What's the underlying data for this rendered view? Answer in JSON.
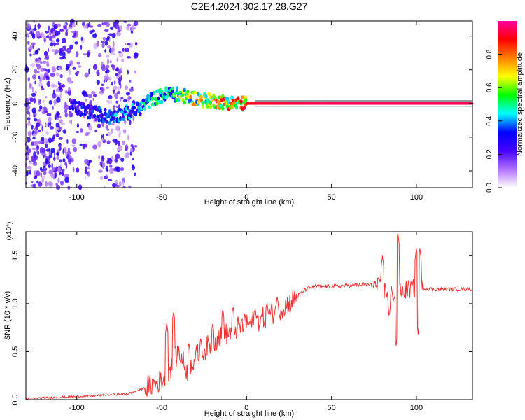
{
  "figure": {
    "title": "C2E4.2024.302.17.28.G27"
  },
  "chart_data": [
    {
      "type": "heatmap",
      "title": "C2E4.2024.302.17.28.G27",
      "xlabel": "Height of straight line (km)",
      "ylabel": "Frequency (Hz)",
      "xlim": [
        -130,
        133
      ],
      "ylim": [
        -50,
        49
      ],
      "xticks": [
        "-100",
        "-50",
        "0",
        "50",
        "100"
      ],
      "yticks": [
        "-40",
        "-20",
        "0",
        "20",
        "40"
      ],
      "colorbar": {
        "label": "Normalized spectral amplitude",
        "range": [
          0,
          1
        ],
        "ticks": [
          "0.0",
          "0.2",
          "0.4",
          "0.6",
          "0.8"
        ],
        "colors": [
          "#ffffff",
          "#b070ff",
          "#4400ff",
          "#0000ff",
          "#00ffff",
          "#00ff00",
          "#ffff00",
          "#ff7f00",
          "#ff0000",
          "#ff00a0"
        ]
      },
      "ridge": {
        "x": [
          -102,
          -95,
          -88,
          -80,
          -72,
          -65,
          -55,
          -45,
          -35,
          -25,
          -15,
          -5,
          0,
          10,
          50,
          100,
          133
        ],
        "frequency": [
          -2,
          -4,
          -6,
          -8,
          -6,
          -4,
          3,
          6,
          4,
          2,
          1,
          0,
          0,
          0,
          0,
          0,
          0
        ],
        "amplitude": [
          0.3,
          0.35,
          0.35,
          0.4,
          0.4,
          0.45,
          0.5,
          0.55,
          0.7,
          0.75,
          0.8,
          0.85,
          0.9,
          0.92,
          0.95,
          0.95,
          0.95
        ]
      }
    },
    {
      "type": "line",
      "xlabel": "Height of straight line (km)",
      "ylabel": "SNR (10 * v/v)",
      "scale_label": "(x10",
      "scale_exponent": "4",
      "xlim": [
        -130,
        133
      ],
      "ylim": [
        0,
        1.75
      ],
      "xticks": [
        "-100",
        "-50",
        "0",
        "50",
        "100"
      ],
      "yticks": [
        "0.0",
        "0.5",
        "1.0",
        "1.5"
      ],
      "line_color": "#ee3333",
      "envelope": {
        "x": [
          -130,
          -90,
          -70,
          -60,
          -50,
          -45,
          -40,
          -35,
          -30,
          -25,
          -20,
          -15,
          -10,
          -5,
          0,
          10,
          20,
          25,
          30,
          35,
          40,
          50,
          60,
          70,
          75,
          80,
          85,
          90,
          95,
          100,
          105,
          110,
          120,
          133
        ],
        "y": [
          0.01,
          0.04,
          0.06,
          0.12,
          0.2,
          0.32,
          0.5,
          0.3,
          0.45,
          0.52,
          0.6,
          0.65,
          0.7,
          0.75,
          0.78,
          0.85,
          0.95,
          1.0,
          1.08,
          1.15,
          1.18,
          1.18,
          1.19,
          1.2,
          1.19,
          1.15,
          1.1,
          1.12,
          1.15,
          1.16,
          1.16,
          1.15,
          1.15,
          1.15
        ]
      },
      "peaks": [
        {
          "x": -47,
          "y": 0.8
        },
        {
          "x": -43,
          "y": 0.93
        },
        {
          "x": -34,
          "y": 0.6
        },
        {
          "x": -27,
          "y": 0.65
        },
        {
          "x": -20,
          "y": 0.8
        },
        {
          "x": -14,
          "y": 0.95
        },
        {
          "x": -8,
          "y": 0.98
        },
        {
          "x": -1,
          "y": 0.9
        },
        {
          "x": 5,
          "y": 0.96
        },
        {
          "x": 12,
          "y": 1.02
        },
        {
          "x": 18,
          "y": 1.08
        },
        {
          "x": 80,
          "y": 1.5
        },
        {
          "x": 84,
          "y": 1.6
        },
        {
          "x": 89,
          "y": 1.75
        },
        {
          "x": 100,
          "y": 1.58
        },
        {
          "x": 102,
          "y": 1.58
        }
      ],
      "troughs": [
        {
          "x": 88,
          "y": 0.55
        },
        {
          "x": 101,
          "y": 0.68
        },
        {
          "x": 84,
          "y": 0.85
        }
      ]
    }
  ]
}
